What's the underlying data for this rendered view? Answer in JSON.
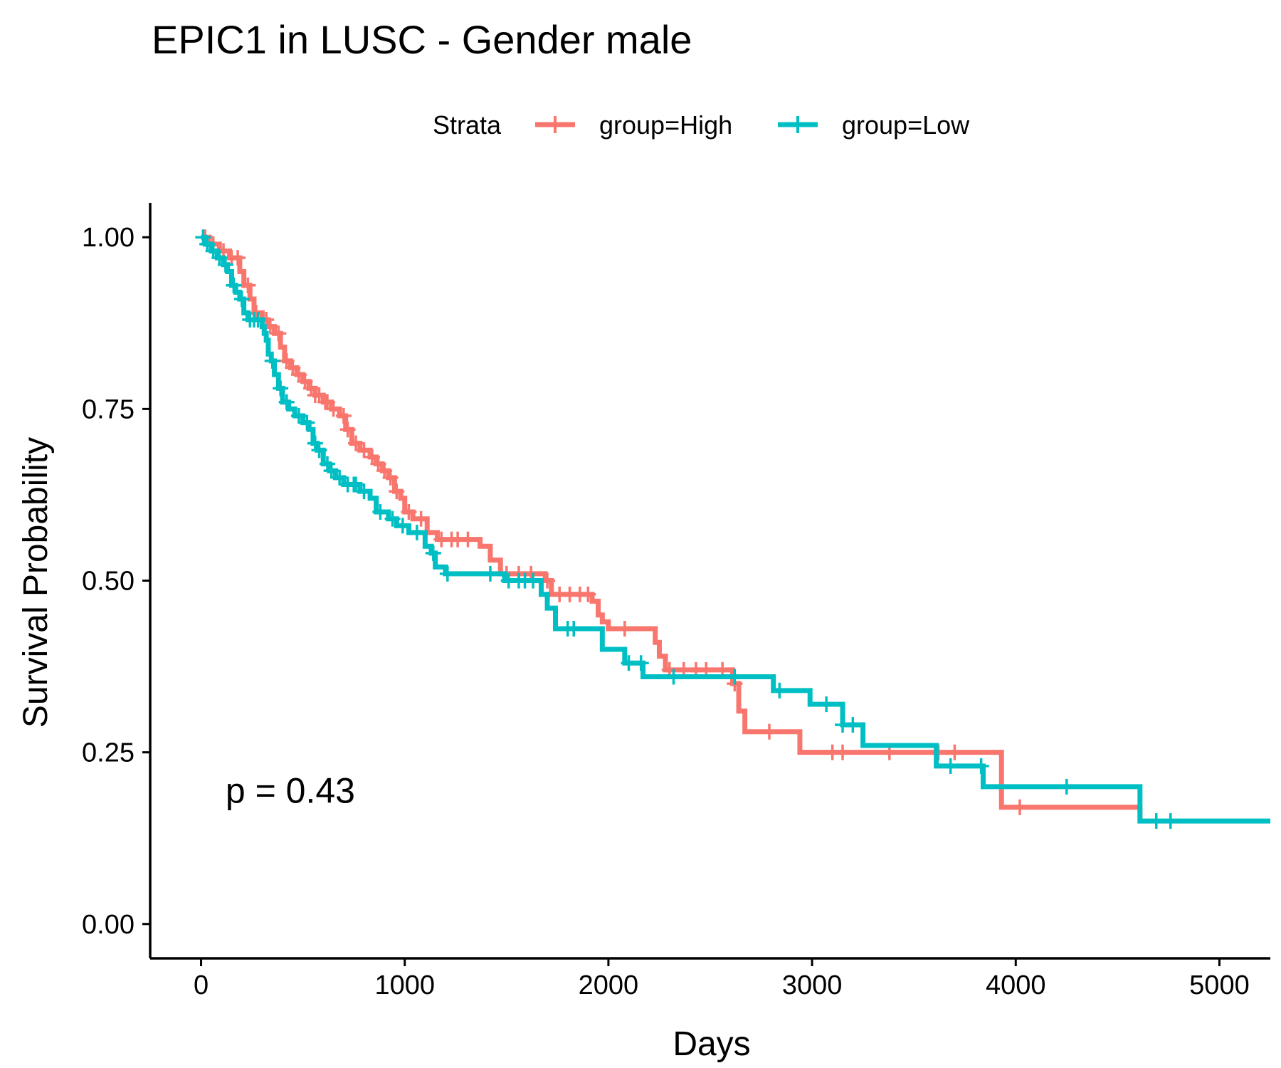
{
  "chart_data": {
    "type": "line",
    "title": "EPIC1 in LUSC - Gender male",
    "xlabel": "Days",
    "ylabel": "Survival Probability",
    "xlim": [
      -250,
      5250
    ],
    "ylim": [
      -0.05,
      1.05
    ],
    "x_ticks": [
      0,
      1000,
      2000,
      3000,
      4000,
      5000
    ],
    "x_tick_labels": [
      "0",
      "1000",
      "2000",
      "3000",
      "4000",
      "5000"
    ],
    "y_ticks": [
      0,
      0.25,
      0.5,
      0.75,
      1.0
    ],
    "y_tick_labels": [
      "0.00",
      "0.25",
      "0.50",
      "0.75",
      "1.00"
    ],
    "grid": false,
    "legend": {
      "title": "Strata",
      "placement": "top",
      "entries": [
        "group=High",
        "group=Low"
      ]
    },
    "annotation": "p = 0.43",
    "annotation_position": {
      "x": 120,
      "y": 0.195
    },
    "series": [
      {
        "name": "group=High",
        "color": "#F8766D",
        "steps": [
          [
            0,
            1.0
          ],
          [
            40,
            0.99
          ],
          [
            90,
            0.98
          ],
          [
            140,
            0.97
          ],
          [
            190,
            0.95
          ],
          [
            210,
            0.93
          ],
          [
            240,
            0.91
          ],
          [
            260,
            0.89
          ],
          [
            300,
            0.88
          ],
          [
            330,
            0.87
          ],
          [
            360,
            0.86
          ],
          [
            390,
            0.84
          ],
          [
            410,
            0.82
          ],
          [
            440,
            0.81
          ],
          [
            470,
            0.8
          ],
          [
            500,
            0.79
          ],
          [
            530,
            0.78
          ],
          [
            560,
            0.77
          ],
          [
            600,
            0.76
          ],
          [
            640,
            0.75
          ],
          [
            680,
            0.74
          ],
          [
            710,
            0.72
          ],
          [
            740,
            0.7
          ],
          [
            780,
            0.69
          ],
          [
            830,
            0.68
          ],
          [
            860,
            0.67
          ],
          [
            890,
            0.66
          ],
          [
            920,
            0.65
          ],
          [
            950,
            0.63
          ],
          [
            980,
            0.62
          ],
          [
            1000,
            0.6
          ],
          [
            1040,
            0.59
          ],
          [
            1110,
            0.57
          ],
          [
            1160,
            0.56
          ],
          [
            1370,
            0.55
          ],
          [
            1420,
            0.53
          ],
          [
            1470,
            0.51
          ],
          [
            1690,
            0.5
          ],
          [
            1720,
            0.48
          ],
          [
            1920,
            0.47
          ],
          [
            1950,
            0.45
          ],
          [
            1970,
            0.44
          ],
          [
            2000,
            0.43
          ],
          [
            2230,
            0.41
          ],
          [
            2250,
            0.39
          ],
          [
            2280,
            0.37
          ],
          [
            2610,
            0.35
          ],
          [
            2640,
            0.31
          ],
          [
            2670,
            0.28
          ],
          [
            2940,
            0.25
          ],
          [
            3930,
            0.17
          ],
          [
            4610,
            0.15
          ]
        ],
        "censor_x": [
          20,
          60,
          110,
          150,
          180,
          230,
          270,
          320,
          340,
          380,
          420,
          450,
          480,
          510,
          540,
          560,
          580,
          610,
          620,
          650,
          700,
          720,
          760,
          800,
          840,
          870,
          900,
          930,
          960,
          1020,
          1080,
          1180,
          1230,
          1260,
          1310,
          1500,
          1560,
          1620,
          1700,
          1760,
          1810,
          1860,
          1900,
          2080,
          2300,
          2370,
          2430,
          2480,
          2560,
          2620,
          2790,
          3100,
          3150,
          3380,
          3620,
          3700,
          4020
        ],
        "end_x": 4610
      },
      {
        "name": "group=Low",
        "color": "#00BFC4",
        "steps": [
          [
            0,
            1.0
          ],
          [
            20,
            0.99
          ],
          [
            50,
            0.98
          ],
          [
            80,
            0.97
          ],
          [
            110,
            0.96
          ],
          [
            130,
            0.95
          ],
          [
            150,
            0.93
          ],
          [
            170,
            0.92
          ],
          [
            190,
            0.91
          ],
          [
            210,
            0.89
          ],
          [
            230,
            0.88
          ],
          [
            300,
            0.87
          ],
          [
            310,
            0.86
          ],
          [
            320,
            0.85
          ],
          [
            330,
            0.83
          ],
          [
            345,
            0.82
          ],
          [
            360,
            0.8
          ],
          [
            380,
            0.78
          ],
          [
            400,
            0.76
          ],
          [
            430,
            0.75
          ],
          [
            460,
            0.74
          ],
          [
            500,
            0.73
          ],
          [
            530,
            0.72
          ],
          [
            550,
            0.7
          ],
          [
            570,
            0.69
          ],
          [
            600,
            0.67
          ],
          [
            630,
            0.66
          ],
          [
            660,
            0.65
          ],
          [
            700,
            0.64
          ],
          [
            780,
            0.63
          ],
          [
            830,
            0.62
          ],
          [
            860,
            0.6
          ],
          [
            920,
            0.59
          ],
          [
            960,
            0.58
          ],
          [
            1020,
            0.57
          ],
          [
            1100,
            0.55
          ],
          [
            1130,
            0.54
          ],
          [
            1150,
            0.52
          ],
          [
            1200,
            0.51
          ],
          [
            1490,
            0.5
          ],
          [
            1670,
            0.48
          ],
          [
            1700,
            0.46
          ],
          [
            1740,
            0.43
          ],
          [
            1970,
            0.4
          ],
          [
            2080,
            0.38
          ],
          [
            2170,
            0.36
          ],
          [
            2810,
            0.34
          ],
          [
            2990,
            0.32
          ],
          [
            3150,
            0.29
          ],
          [
            3250,
            0.26
          ],
          [
            3610,
            0.23
          ],
          [
            3840,
            0.2
          ],
          [
            4610,
            0.15
          ]
        ],
        "censor_x": [
          10,
          30,
          60,
          90,
          120,
          160,
          200,
          240,
          260,
          280,
          350,
          390,
          420,
          480,
          520,
          560,
          580,
          620,
          640,
          680,
          720,
          750,
          760,
          800,
          880,
          940,
          990,
          1060,
          1140,
          1210,
          1420,
          1510,
          1560,
          1590,
          1630,
          1800,
          1830,
          2100,
          2160,
          2320,
          2620,
          2840,
          3070,
          3150,
          3200,
          3680,
          3830,
          4250,
          4690,
          4760
        ],
        "end_x": 5250
      }
    ]
  }
}
